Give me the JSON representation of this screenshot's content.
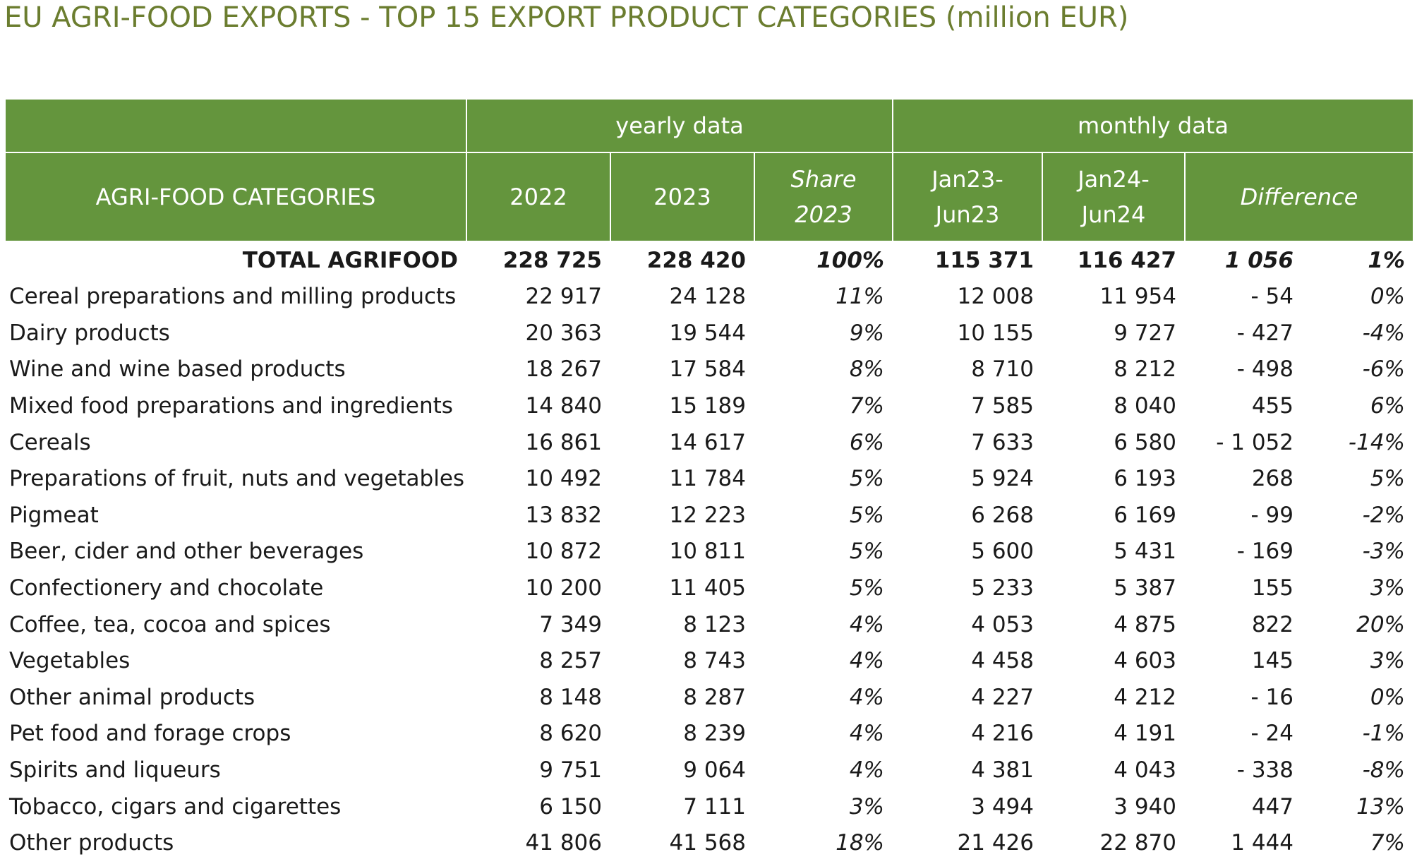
{
  "title": "EU AGRI-FOOD EXPORTS - TOP 15 EXPORT PRODUCT CATEGORIES (million EUR)",
  "header": {
    "group_yearly": "yearly data",
    "group_monthly": "monthly data",
    "col_category": "AGRI-FOOD CATEGORIES",
    "col_2022": "2022",
    "col_2023": "2023",
    "col_share_line1": "Share",
    "col_share_line2": "2023",
    "col_jan23_line1": "Jan23-",
    "col_jan23_line2": "Jun23",
    "col_jan24_line1": "Jan24-",
    "col_jan24_line2": "Jun24",
    "col_difference": "Difference"
  },
  "total": {
    "category": "TOTAL AGRIFOOD",
    "y2022": "228 725",
    "y2023": "228 420",
    "share": "100%",
    "jan23": "115 371",
    "jan24": "116 427",
    "diff": "1 056",
    "pct": "1%"
  },
  "rows": [
    {
      "category": "Cereal preparations and milling products",
      "y2022": "22 917",
      "y2023": "24 128",
      "share": "11%",
      "jan23": "12 008",
      "jan24": "11 954",
      "diff": "-  54",
      "pct": "0%"
    },
    {
      "category": "Dairy products",
      "y2022": "20 363",
      "y2023": "19 544",
      "share": "9%",
      "jan23": "10 155",
      "jan24": "9 727",
      "diff": "-  427",
      "pct": "-4%"
    },
    {
      "category": "Wine and wine based products",
      "y2022": "18 267",
      "y2023": "17 584",
      "share": "8%",
      "jan23": "8 710",
      "jan24": "8 212",
      "diff": "-  498",
      "pct": "-6%"
    },
    {
      "category": "Mixed food preparations and ingredients",
      "y2022": "14 840",
      "y2023": "15 189",
      "share": "7%",
      "jan23": "7 585",
      "jan24": "8 040",
      "diff": "455",
      "pct": "6%"
    },
    {
      "category": "Cereals",
      "y2022": "16 861",
      "y2023": "14 617",
      "share": "6%",
      "jan23": "7 633",
      "jan24": "6 580",
      "diff": "- 1 052",
      "pct": "-14%"
    },
    {
      "category": "Preparations of fruit, nuts and vegetables",
      "y2022": "10 492",
      "y2023": "11 784",
      "share": "5%",
      "jan23": "5 924",
      "jan24": "6 193",
      "diff": "268",
      "pct": "5%"
    },
    {
      "category": "Pigmeat",
      "y2022": "13 832",
      "y2023": "12 223",
      "share": "5%",
      "jan23": "6 268",
      "jan24": "6 169",
      "diff": "-  99",
      "pct": "-2%"
    },
    {
      "category": "Beer, cider and other beverages",
      "y2022": "10 872",
      "y2023": "10 811",
      "share": "5%",
      "jan23": "5 600",
      "jan24": "5 431",
      "diff": "-  169",
      "pct": "-3%"
    },
    {
      "category": "Confectionery and chocolate",
      "y2022": "10 200",
      "y2023": "11 405",
      "share": "5%",
      "jan23": "5 233",
      "jan24": "5 387",
      "diff": "155",
      "pct": "3%"
    },
    {
      "category": "Coffee, tea, cocoa and spices",
      "y2022": "7 349",
      "y2023": "8 123",
      "share": "4%",
      "jan23": "4 053",
      "jan24": "4 875",
      "diff": "822",
      "pct": "20%"
    },
    {
      "category": "Vegetables",
      "y2022": "8 257",
      "y2023": "8 743",
      "share": "4%",
      "jan23": "4 458",
      "jan24": "4 603",
      "diff": "145",
      "pct": "3%"
    },
    {
      "category": "Other animal products",
      "y2022": "8 148",
      "y2023": "8 287",
      "share": "4%",
      "jan23": "4 227",
      "jan24": "4 212",
      "diff": "-  16",
      "pct": "0%"
    },
    {
      "category": "Pet food and forage crops",
      "y2022": "8 620",
      "y2023": "8 239",
      "share": "4%",
      "jan23": "4 216",
      "jan24": "4 191",
      "diff": "-  24",
      "pct": "-1%"
    },
    {
      "category": "Spirits and liqueurs",
      "y2022": "9 751",
      "y2023": "9 064",
      "share": "4%",
      "jan23": "4 381",
      "jan24": "4 043",
      "diff": "-  338",
      "pct": "-8%"
    },
    {
      "category": "Tobacco, cigars and cigarettes",
      "y2022": "6 150",
      "y2023": "7 111",
      "share": "3%",
      "jan23": "3 494",
      "jan24": "3 940",
      "diff": "447",
      "pct": "13%"
    },
    {
      "category": "Other products",
      "y2022": "41 806",
      "y2023": "41 568",
      "share": "18%",
      "jan23": "21 426",
      "jan24": "22 870",
      "diff": "1 444",
      "pct": "7%"
    }
  ],
  "colors": {
    "header_bg": "#64953d",
    "title": "#6b7d2f"
  }
}
